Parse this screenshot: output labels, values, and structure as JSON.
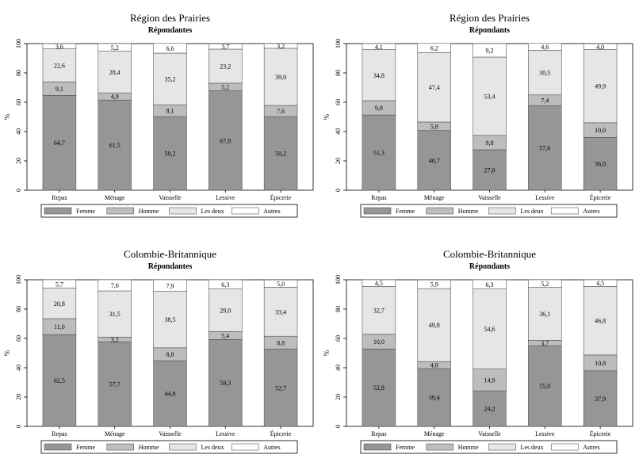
{
  "colors": {
    "Femme": "#969696",
    "Homme": "#bdbdbd",
    "Les deux": "#e6e6e6",
    "Autres": "#ffffff"
  },
  "chart_data": [
    {
      "type": "bar",
      "stacked": true,
      "title": "Région des Prairies",
      "subtitle": "Répondantes",
      "ylabel": "%",
      "ylim": [
        0,
        100
      ],
      "yticks": [
        "0",
        "20",
        "40",
        "60",
        "80",
        "100"
      ],
      "categories": [
        "Repas",
        "Ménage",
        "Vaisselle",
        "Lessive",
        "Épicerie"
      ],
      "legend": "bottom",
      "series": [
        {
          "name": "Femme",
          "values": [
            64.7,
            61.5,
            50.2,
            67.8,
            50.2
          ],
          "labels": [
            "64,7",
            "61,5",
            "50,2",
            "67,8",
            "50,2"
          ]
        },
        {
          "name": "Homme",
          "values": [
            9.1,
            4.9,
            8.1,
            5.2,
            7.6
          ],
          "labels": [
            "9,1",
            "4,9",
            "8,1",
            "5,2",
            "7,6"
          ]
        },
        {
          "name": "Les deux",
          "values": [
            22.6,
            28.4,
            35.2,
            23.2,
            39.0
          ],
          "labels": [
            "22,6",
            "28,4",
            "35,2",
            "23,2",
            "39,0"
          ]
        },
        {
          "name": "Autres",
          "values": [
            3.6,
            5.2,
            6.6,
            3.7,
            3.2
          ],
          "labels": [
            "3,6",
            "5,2",
            "6,6",
            "3,7",
            "3,2"
          ]
        }
      ]
    },
    {
      "type": "bar",
      "stacked": true,
      "title": "Région des Prairies",
      "subtitle": "Répondants",
      "ylabel": "%",
      "ylim": [
        0,
        100
      ],
      "yticks": [
        "0",
        "20",
        "40",
        "60",
        "80",
        "100"
      ],
      "categories": [
        "Repas",
        "Ménage",
        "Vaisselle",
        "Lessive",
        "Épicerie"
      ],
      "legend": "bottom",
      "series": [
        {
          "name": "Femme",
          "values": [
            51.3,
            40.7,
            27.6,
            57.6,
            36.0
          ],
          "labels": [
            "51,3",
            "40,7",
            "27,6",
            "57,6",
            "36,0"
          ]
        },
        {
          "name": "Homme",
          "values": [
            9.8,
            5.8,
            9.8,
            7.4,
            10.0
          ],
          "labels": [
            "9,8",
            "5,8",
            "9,8",
            "7,4",
            "10,0"
          ]
        },
        {
          "name": "Les deux",
          "values": [
            34.8,
            47.4,
            53.4,
            30.5,
            49.9
          ],
          "labels": [
            "34,8",
            "47,4",
            "53,4",
            "30,5",
            "49,9"
          ]
        },
        {
          "name": "Autres",
          "values": [
            4.1,
            6.2,
            9.2,
            4.6,
            4.0
          ],
          "labels": [
            "4,1",
            "6,2",
            "9,2",
            "4,6",
            "4,0"
          ]
        }
      ]
    },
    {
      "type": "bar",
      "stacked": true,
      "title": "Colombie-Britannique",
      "subtitle": "Répondantes",
      "ylabel": "%",
      "ylim": [
        0,
        100
      ],
      "yticks": [
        "0",
        "20",
        "40",
        "60",
        "80",
        "100"
      ],
      "categories": [
        "Repas",
        "Ménage",
        "Vaisselle",
        "Lessive",
        "Épicerie"
      ],
      "legend": "bottom",
      "series": [
        {
          "name": "Femme",
          "values": [
            62.5,
            57.7,
            44.8,
            59.3,
            52.7
          ],
          "labels": [
            "62,5",
            "57,7",
            "44,8",
            "59,3",
            "52,7"
          ]
        },
        {
          "name": "Homme",
          "values": [
            11.0,
            3.2,
            8.8,
            5.4,
            8.8
          ],
          "labels": [
            "11,0",
            "3,2",
            "8,8",
            "5,4",
            "8,8"
          ]
        },
        {
          "name": "Les deux",
          "values": [
            20.8,
            31.5,
            38.5,
            29.0,
            33.4
          ],
          "labels": [
            "20,8",
            "31,5",
            "38,5",
            "29,0",
            "33,4"
          ]
        },
        {
          "name": "Autres",
          "values": [
            5.7,
            7.6,
            7.9,
            6.3,
            5.0
          ],
          "labels": [
            "5,7",
            "7,6",
            "7,9",
            "6,3",
            "5,0"
          ]
        }
      ]
    },
    {
      "type": "bar",
      "stacked": true,
      "title": "Colombie-Britannique",
      "subtitle": "Répondants",
      "ylabel": "%",
      "ylim": [
        0,
        100
      ],
      "yticks": [
        "0",
        "20",
        "40",
        "60",
        "80",
        "100"
      ],
      "categories": [
        "Repas",
        "Ménage",
        "Vaisselle",
        "Lessive",
        "Épicerie"
      ],
      "legend": "bottom",
      "series": [
        {
          "name": "Femme",
          "values": [
            52.8,
            39.4,
            24.2,
            55.0,
            37.9
          ],
          "labels": [
            "52,8",
            "39,4",
            "24,2",
            "55,0",
            "37,9"
          ]
        },
        {
          "name": "Homme",
          "values": [
            10.0,
            4.8,
            14.9,
            3.7,
            10.8
          ],
          "labels": [
            "10,0",
            "4,8",
            "14,9",
            "3,7",
            "10,8"
          ]
        },
        {
          "name": "Les deux",
          "values": [
            32.7,
            49.8,
            54.6,
            36.1,
            46.8
          ],
          "labels": [
            "32,7",
            "49,8",
            "54,6",
            "36,1",
            "46,8"
          ]
        },
        {
          "name": "Autres",
          "values": [
            4.5,
            5.9,
            6.3,
            5.2,
            4.5
          ],
          "labels": [
            "4,5",
            "5,9",
            "6,3",
            "5,2",
            "4,5"
          ]
        }
      ]
    }
  ]
}
